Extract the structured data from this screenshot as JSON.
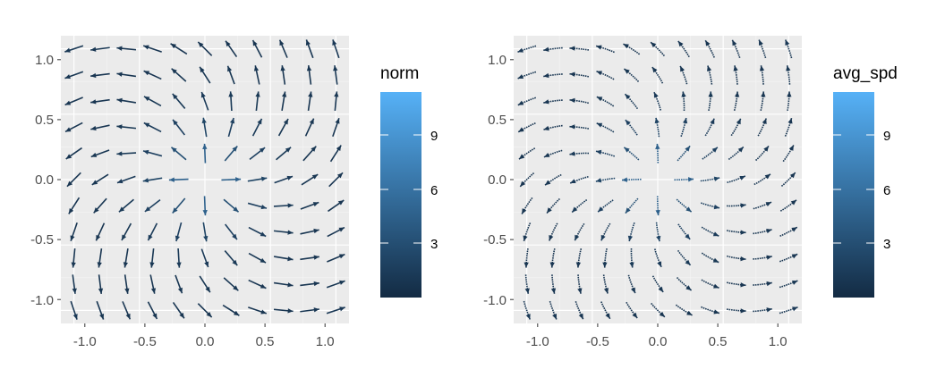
{
  "chart_data": [
    {
      "type": "vector_field",
      "style": "straight",
      "title": "",
      "xlabel": "",
      "ylabel": "",
      "xlim": [
        -1.1,
        1.1
      ],
      "ylim": [
        -1.1,
        1.1
      ],
      "x_ticks": [
        "-1.0",
        "-0.5",
        "0.0",
        "0.5",
        "1.0"
      ],
      "y_ticks": [
        "1.0",
        "0.5",
        "0.0",
        "-0.5",
        "-1.0"
      ],
      "grid": true,
      "panel_background": "#ebebeb",
      "legend": {
        "title": "norm",
        "position": "right",
        "labels": [
          "9",
          "6",
          "3"
        ],
        "colors": [
          "#132b43",
          "#56b1f7"
        ]
      },
      "field": "u = x/(x^2+y^2) - y, v = y/(x^2+y^2) + x, sampled on an 11x11 grid from -1 to 1"
    },
    {
      "type": "vector_field",
      "style": "streamlet",
      "title": "",
      "xlabel": "",
      "ylabel": "",
      "xlim": [
        -1.1,
        1.1
      ],
      "ylim": [
        -1.1,
        1.1
      ],
      "x_ticks": [
        "-1.0",
        "-0.5",
        "0.0",
        "0.5",
        "1.0"
      ],
      "y_ticks": [
        "1.0",
        "0.5",
        "0.0",
        "-0.5",
        "-1.0"
      ],
      "grid": true,
      "panel_background": "#ebebeb",
      "legend": {
        "title": "avg_spd",
        "position": "right",
        "labels": [
          "9",
          "6",
          "3"
        ],
        "colors": [
          "#132b43",
          "#56b1f7"
        ]
      },
      "field": "same field, drawn as short curved streamlets"
    }
  ]
}
